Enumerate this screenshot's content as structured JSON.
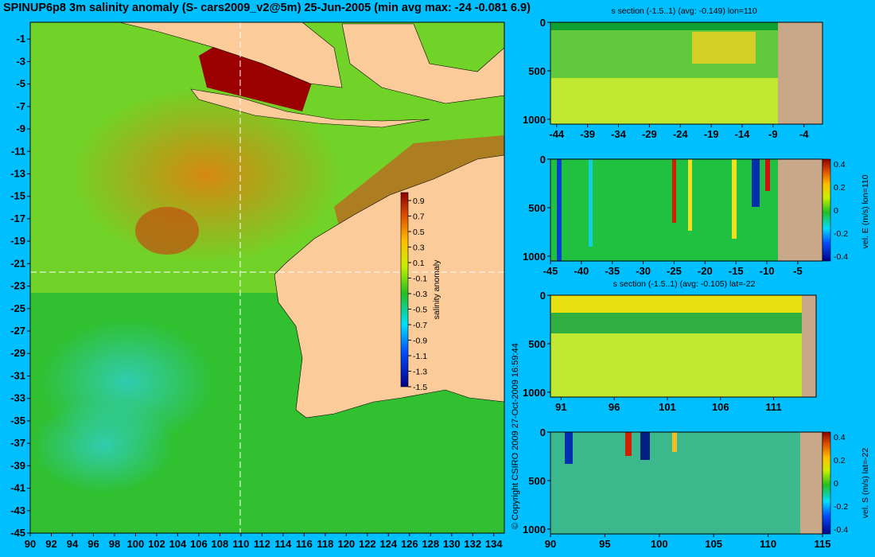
{
  "title": "SPINUP6p8 3m salinity anomaly (S- cars2009_v2@5m) 25-Jun-2005 (min avg max: -24 -0.081 6.9)",
  "copyright": "© Copyright CSIRO 2009   27-Oct-2009 16:59:44",
  "colors": {
    "background": "#00bfff",
    "land": "#fccb9a",
    "section_land": "#c8a888"
  },
  "chart_data": [
    {
      "type": "heatmap",
      "id": "map",
      "title": "SPINUP6p8 3m salinity anomaly (S- cars2009_v2@5m) 25-Jun-2005 (min avg max: -24 -0.081 6.9)",
      "x_ticks": [
        90,
        92,
        94,
        96,
        98,
        100,
        102,
        104,
        106,
        108,
        110,
        112,
        114,
        116,
        118,
        120,
        122,
        124,
        126,
        128,
        130,
        132,
        134
      ],
      "y_ticks": [
        -1,
        -3,
        -5,
        -7,
        -9,
        -11,
        -13,
        -15,
        -17,
        -19,
        -21,
        -23,
        -25,
        -27,
        -29,
        -31,
        -33,
        -35,
        -37,
        -39,
        -41,
        -43,
        -45
      ],
      "xlim": [
        90,
        135
      ],
      "ylim": [
        -45,
        0.5
      ],
      "crosshair": {
        "lon": 110,
        "lat": -22
      },
      "colorbar": {
        "label": "salinity anomaly",
        "ticks": [
          "0.9",
          "0.7",
          "0.5",
          "0.3",
          "0.1",
          "-0.1",
          "-0.3",
          "-0.5",
          "-0.7",
          "-0.9",
          "-1.1",
          "-1.3",
          "-1.5"
        ],
        "range": [
          -1.5,
          1.0
        ]
      }
    },
    {
      "type": "heatmap",
      "id": "s-section-lon",
      "title": "s section (-1.5..1) (avg: -0.149) lon=110",
      "x_ticks": [
        "-44",
        "-39",
        "-34",
        "-29",
        "-24",
        "-19",
        "-14",
        "-9",
        "-4"
      ],
      "xlim": [
        -45,
        -1
      ],
      "y_ticks": [
        "0",
        "500",
        "1000"
      ],
      "ylim": [
        1050,
        0
      ]
    },
    {
      "type": "heatmap",
      "id": "vel-e-lon",
      "title": "",
      "x_ticks": [
        "-45",
        "-40",
        "-35",
        "-30",
        "-25",
        "-20",
        "-15",
        "-10",
        "-5"
      ],
      "xlim": [
        -45,
        -1
      ],
      "y_ticks": [
        "0",
        "500",
        "1000"
      ],
      "ylim": [
        1050,
        0
      ],
      "colorbar": {
        "label": "vel. E (m/s) lon=110",
        "ticks": [
          "0.4",
          "0.2",
          "0",
          "-0.2",
          "-0.4"
        ]
      }
    },
    {
      "type": "heatmap",
      "id": "s-section-lat",
      "title": "s section (-1.5..1) (avg: -0.105) lat=-22",
      "x_ticks": [
        "91",
        "96",
        "101",
        "106",
        "111"
      ],
      "xlim": [
        90,
        115
      ],
      "y_ticks": [
        "0",
        "500",
        "1000"
      ],
      "ylim": [
        1050,
        0
      ]
    },
    {
      "type": "heatmap",
      "id": "vel-s-lat",
      "title": "",
      "x_ticks": [
        "90",
        "95",
        "100",
        "105",
        "110",
        "115"
      ],
      "xlim": [
        90,
        115
      ],
      "y_ticks": [
        "0",
        "500",
        "1000"
      ],
      "ylim": [
        1050,
        0
      ],
      "colorbar": {
        "label": "vel. S (m/s) lat=-22",
        "ticks": [
          "0.4",
          "0.2",
          "0",
          "-0.2",
          "-0.4"
        ]
      }
    }
  ]
}
